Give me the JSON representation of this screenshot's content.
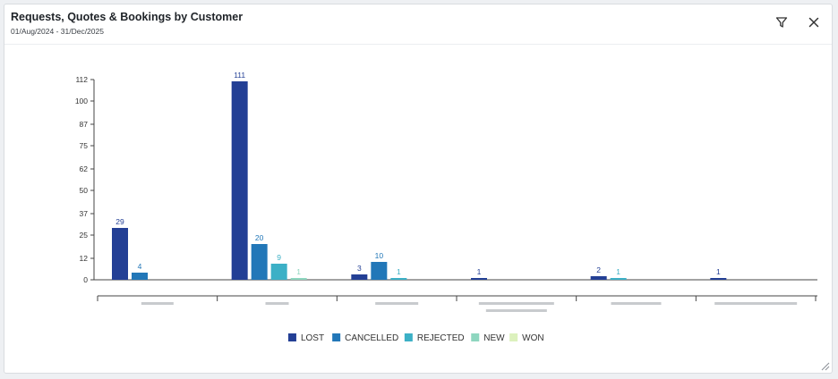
{
  "header": {
    "title": "Requests, Quotes & Bookings by Customer",
    "date_range": "01/Aug/2024 - 31/Dec/2025"
  },
  "icons": {
    "filter": "filter-icon",
    "close": "close-icon",
    "resize": "resize-handle-icon"
  },
  "chart_data": {
    "type": "bar",
    "title": "",
    "xlabel": "",
    "ylabel": "",
    "ylim": [
      0,
      112
    ],
    "y_ticks": [
      0,
      12,
      25,
      37,
      50,
      62,
      75,
      87,
      100,
      112
    ],
    "categories": [
      "",
      "",
      "",
      "",
      "",
      ""
    ],
    "legend_position": "bottom-center",
    "grid": false,
    "series": [
      {
        "name": "LOST",
        "color": "#233f95",
        "label_color": "#233f95",
        "values": [
          29,
          111,
          3,
          1,
          2,
          1
        ]
      },
      {
        "name": "CANCELLED",
        "color": "#2277b8",
        "label_color": "#2277b8",
        "values": [
          4,
          20,
          10,
          null,
          null,
          null
        ]
      },
      {
        "name": "REJECTED",
        "color": "#3cb0c6",
        "label_color": "#3cb0c6",
        "values": [
          null,
          9,
          1,
          null,
          1,
          null
        ]
      },
      {
        "name": "NEW",
        "color": "#8ed6bf",
        "label_color": "#8ed6bf",
        "values": [
          null,
          1,
          null,
          null,
          null,
          null
        ]
      },
      {
        "name": "WON",
        "color": "#dcf1bd",
        "label_color": "#c5dca6",
        "values": [
          null,
          null,
          null,
          null,
          null,
          null
        ]
      }
    ]
  }
}
